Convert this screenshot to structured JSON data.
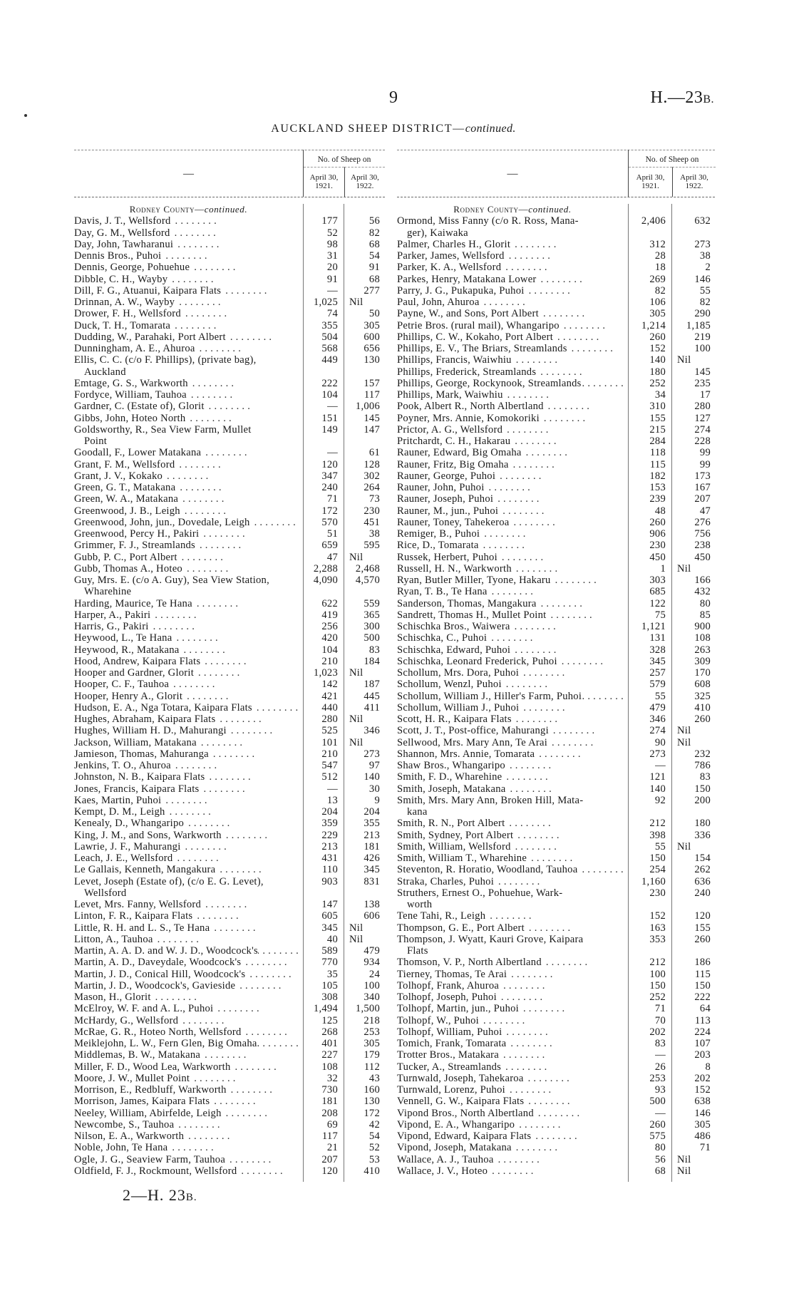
{
  "header": {
    "page_number": "9",
    "doc_ref_main": "H.—23",
    "doc_ref_suffix": "B."
  },
  "title": {
    "main": "AUCKLAND SHEEP DISTRICT—",
    "italic": "continued."
  },
  "table_header": {
    "name_col": "—",
    "group": "No. of Sheep on",
    "col1": "April 30, 1921.",
    "col2": "April 30, 1922."
  },
  "county": {
    "name": "Rodney County—",
    "suffix": "continued."
  },
  "left_rows": [
    {
      "name": "Davis, J. T., Wellsford",
      "a": "177",
      "b": "56"
    },
    {
      "name": "Day, G. M., Wellsford",
      "a": "52",
      "b": "82"
    },
    {
      "name": "Day, John, Tawharanui",
      "a": "98",
      "b": "68"
    },
    {
      "name": "Dennis Bros., Puhoi",
      "a": "31",
      "b": "54"
    },
    {
      "name": "Dennis, George, Pohuehue",
      "a": "20",
      "b": "91"
    },
    {
      "name": "Dibble, C. H., Wayby",
      "a": "91",
      "b": "68"
    },
    {
      "name": "Dill, F. G., Atuanui, Kaipara Flats",
      "a": "—",
      "b": "277"
    },
    {
      "name": "Drinnan, A. W., Wayby",
      "a": "1,025",
      "b": "Nil"
    },
    {
      "name": "Drower, F. H., Wellsford",
      "a": "74",
      "b": "50"
    },
    {
      "name": "Duck, T. H., Tomarata",
      "a": "355",
      "b": "305"
    },
    {
      "name": "Dudding, W., Parahaki, Port Albert",
      "a": "504",
      "b": "600"
    },
    {
      "name": "Dunningham, A. E., Ahuroa",
      "a": "568",
      "b": "656"
    },
    {
      "name": "Ellis, C. C. (c/o F. Phillips), (private bag),",
      "cont": "Auckland",
      "a": "449",
      "b": "130"
    },
    {
      "name": "Emtage, G. S., Warkworth",
      "a": "222",
      "b": "157"
    },
    {
      "name": "Fordyce, William, Tauhoa",
      "a": "104",
      "b": "117"
    },
    {
      "name": "Gardner, C. (Estate of), Glorit",
      "a": "—",
      "b": "1,006"
    },
    {
      "name": "Gibbs, John, Hoteo North",
      "a": "151",
      "b": "145"
    },
    {
      "name": "Goldsworthy, R., Sea View Farm, Mullet",
      "cont": "Point",
      "a": "149",
      "b": "147"
    },
    {
      "name": "Goodall, F., Lower Matakana",
      "a": "—",
      "b": "61"
    },
    {
      "name": "Grant, F. M., Wellsford",
      "a": "120",
      "b": "128"
    },
    {
      "name": "Grant, J. V., Kokako",
      "a": "347",
      "b": "302"
    },
    {
      "name": "Green, G. T., Matakana",
      "a": "240",
      "b": "264"
    },
    {
      "name": "Green, W. A., Matakana",
      "a": "71",
      "b": "73"
    },
    {
      "name": "Greenwood, J. B., Leigh",
      "a": "172",
      "b": "230"
    },
    {
      "name": "Greenwood, John, jun., Dovedale, Leigh",
      "a": "570",
      "b": "451"
    },
    {
      "name": "Greenwood, Percy H., Pakiri",
      "a": "51",
      "b": "38"
    },
    {
      "name": "Grimmer, F. J., Streamlands",
      "a": "659",
      "b": "595"
    },
    {
      "name": "Gubb, P. C., Port Albert",
      "a": "47",
      "b": "Nil"
    },
    {
      "name": "Gubb, Thomas A., Hoteo",
      "a": "2,288",
      "b": "2,468"
    },
    {
      "name": "Guy, Mrs. E. (c/o A. Guy), Sea View Station,",
      "cont": "Wharehine",
      "a": "4,090",
      "b": "4,570"
    },
    {
      "name": "Harding, Maurice, Te Hana",
      "a": "622",
      "b": "559"
    },
    {
      "name": "Harper, A., Pakiri",
      "a": "419",
      "b": "365"
    },
    {
      "name": "Harris, G., Pakiri",
      "a": "256",
      "b": "300"
    },
    {
      "name": "Heywood, L., Te Hana",
      "a": "420",
      "b": "500"
    },
    {
      "name": "Heywood, R., Matakana",
      "a": "104",
      "b": "83"
    },
    {
      "name": "Hood, Andrew, Kaipara Flats",
      "a": "210",
      "b": "184"
    },
    {
      "name": "Hooper and Gardner, Glorit",
      "a": "1,023",
      "b": "Nil"
    },
    {
      "name": "Hooper, C. F., Tauhoa",
      "a": "142",
      "b": "187"
    },
    {
      "name": "Hooper, Henry A., Glorit",
      "a": "421",
      "b": "445"
    },
    {
      "name": "Hudson, E. A., Nga Totara, Kaipara Flats",
      "a": "440",
      "b": "411"
    },
    {
      "name": "Hughes, Abraham, Kaipara Flats",
      "a": "280",
      "b": "Nil"
    },
    {
      "name": "Hughes, William H. D., Mahurangi",
      "a": "525",
      "b": "346"
    },
    {
      "name": "Jackson, William, Matakana",
      "a": "101",
      "b": "Nil"
    },
    {
      "name": "Jamieson, Thomas, Mahuranga",
      "a": "210",
      "b": "273"
    },
    {
      "name": "Jenkins, T. O., Ahuroa",
      "a": "547",
      "b": "97"
    },
    {
      "name": "Johnston, N. B., Kaipara Flats",
      "a": "512",
      "b": "140"
    },
    {
      "name": "Jones, Francis, Kaipara Flats",
      "a": "—",
      "b": "30"
    },
    {
      "name": "Kaes, Martin, Puhoi",
      "a": "13",
      "b": "9"
    },
    {
      "name": "Kempt, D. M., Leigh",
      "a": "204",
      "b": "204"
    },
    {
      "name": "Kenealy, D., Whangaripo",
      "a": "359",
      "b": "355"
    },
    {
      "name": "King, J. M., and Sons, Warkworth",
      "a": "229",
      "b": "213"
    },
    {
      "name": "Lawrie, J. F., Mahurangi",
      "a": "213",
      "b": "181"
    },
    {
      "name": "Leach, J. E., Wellsford",
      "a": "431",
      "b": "426"
    },
    {
      "name": "Le Gallais, Kenneth, Mangakura",
      "a": "110",
      "b": "345"
    },
    {
      "name": "Levet, Joseph (Estate of), (c/o E. G. Levet),",
      "cont": "Wellsford",
      "a": "903",
      "b": "831"
    },
    {
      "name": "Levet, Mrs. Fanny, Wellsford",
      "a": "147",
      "b": "138"
    },
    {
      "name": "Linton, F. R., Kaipara Flats",
      "a": "605",
      "b": "606"
    },
    {
      "name": "Little, R. H. and L. S., Te Hana",
      "a": "345",
      "b": "Nil"
    },
    {
      "name": "Litton, A., Tauhoa",
      "a": "40",
      "b": "Nil"
    },
    {
      "name": "Martin, A. A. D. and W. J. D., Woodcock's",
      "a": "589",
      "b": "479"
    },
    {
      "name": "Martin, A. D., Daveydale, Woodcock's",
      "a": "770",
      "b": "934"
    },
    {
      "name": "Martin, J. D., Conical Hill, Woodcock's",
      "a": "35",
      "b": "24"
    },
    {
      "name": "Martin, J. D., Woodcock's, Gavieside",
      "a": "105",
      "b": "100"
    },
    {
      "name": "Mason, H., Glorit",
      "a": "308",
      "b": "340"
    },
    {
      "name": "McElroy, W. F. and A. L., Puhoi",
      "a": "1,494",
      "b": "1,500"
    },
    {
      "name": "McHardy, G., Wellsford",
      "a": "125",
      "b": "218"
    },
    {
      "name": "McRae, G. R., Hoteo North, Wellsford",
      "a": "268",
      "b": "253"
    },
    {
      "name": "Meiklejohn, L. W., Fern Glen, Big Omaha",
      "a": "401",
      "b": "305"
    },
    {
      "name": "Middlemas, B. W., Matakana",
      "a": "227",
      "b": "179"
    },
    {
      "name": "Miller, F. D., Wood Lea, Warkworth",
      "a": "108",
      "b": "112"
    },
    {
      "name": "Moore, J. W., Mullet Point",
      "a": "32",
      "b": "43"
    },
    {
      "name": "Morrison, E., Redbluff, Warkworth",
      "a": "730",
      "b": "160"
    },
    {
      "name": "Morrison, James, Kaipara Flats",
      "a": "181",
      "b": "130"
    },
    {
      "name": "Neeley, William, Abirfelde, Leigh",
      "a": "208",
      "b": "172"
    },
    {
      "name": "Newcombe, S., Tauhoa",
      "a": "69",
      "b": "42"
    },
    {
      "name": "Nilson, E. A., Warkworth",
      "a": "117",
      "b": "54"
    },
    {
      "name": "Noble, John, Te Hana",
      "a": "21",
      "b": "52"
    },
    {
      "name": "Ogle, J. G., Seaview Farm, Tauhoa",
      "a": "207",
      "b": "53"
    },
    {
      "name": "Oldfield, F. J., Rockmount, Wellsford",
      "a": "120",
      "b": "410"
    }
  ],
  "right_rows": [
    {
      "name": "Ormond, Miss Fanny (c/o R. Ross, Mana-",
      "cont": "ger), Kaiwaka",
      "a": "2,406",
      "b": "632"
    },
    {
      "name": "Palmer, Charles H., Glorit",
      "a": "312",
      "b": "273"
    },
    {
      "name": "Parker, James, Wellsford",
      "a": "28",
      "b": "38"
    },
    {
      "name": "Parker, K. A., Wellsford",
      "a": "18",
      "b": "2"
    },
    {
      "name": "Parkes, Henry, Matakana Lower",
      "a": "269",
      "b": "146"
    },
    {
      "name": "Parry, J. G., Pukapuka, Puhoi",
      "a": "82",
      "b": "55"
    },
    {
      "name": "Paul, John, Ahuroa",
      "a": "106",
      "b": "82"
    },
    {
      "name": "Payne, W., and Sons, Port Albert",
      "a": "305",
      "b": "290"
    },
    {
      "name": "Petrie Bros. (rural mail), Whangaripo",
      "a": "1,214",
      "b": "1,185"
    },
    {
      "name": "Phillips, C. W., Kokaho, Port Albert",
      "a": "260",
      "b": "219"
    },
    {
      "name": "Phillips, E. V., The Briars, Streamlands",
      "a": "152",
      "b": "100"
    },
    {
      "name": "Phillips, Francis, Waiwhiu",
      "a": "140",
      "b": "Nil"
    },
    {
      "name": "Phillips, Frederick, Streamlands",
      "a": "180",
      "b": "145"
    },
    {
      "name": "Phillips, George, Rockynook, Streamlands",
      "a": "252",
      "b": "235"
    },
    {
      "name": "Phillips, Mark, Waiwhiu",
      "a": "34",
      "b": "17"
    },
    {
      "name": "Pook, Albert R., North Albertland",
      "a": "310",
      "b": "280"
    },
    {
      "name": "Poyner, Mrs. Annie, Komokoriki",
      "a": "155",
      "b": "127"
    },
    {
      "name": "Prictor, A. G., Wellsford",
      "a": "215",
      "b": "274"
    },
    {
      "name": "Pritchardt, C. H., Hakarau",
      "a": "284",
      "b": "228"
    },
    {
      "name": "Rauner, Edward, Big Omaha",
      "a": "118",
      "b": "99"
    },
    {
      "name": "Rauner, Fritz, Big Omaha",
      "a": "115",
      "b": "99"
    },
    {
      "name": "Rauner, George, Puhoi",
      "a": "182",
      "b": "173"
    },
    {
      "name": "Rauner, John, Puhoi",
      "a": "153",
      "b": "167"
    },
    {
      "name": "Rauner, Joseph, Puhoi",
      "a": "239",
      "b": "207"
    },
    {
      "name": "Rauner, M., jun., Puhoi",
      "a": "48",
      "b": "47"
    },
    {
      "name": "Rauner, Toney, Tahekeroa",
      "a": "260",
      "b": "276"
    },
    {
      "name": "Remiger, B., Puhoi",
      "a": "906",
      "b": "756"
    },
    {
      "name": "Rice, D., Tomarata",
      "a": "230",
      "b": "238"
    },
    {
      "name": "Russek, Herbert, Puhoi",
      "a": "450",
      "b": "450"
    },
    {
      "name": "Russell, H. N., Warkworth",
      "a": "1",
      "b": "Nil"
    },
    {
      "name": "Ryan, Butler Miller, Tyone, Hakaru",
      "a": "303",
      "b": "166"
    },
    {
      "name": "Ryan, T. B., Te Hana",
      "a": "685",
      "b": "432"
    },
    {
      "name": "Sanderson, Thomas, Mangakura",
      "a": "122",
      "b": "80"
    },
    {
      "name": "Sandrett, Thomas H., Mullet Point",
      "a": "75",
      "b": "85"
    },
    {
      "name": "Schischka Bros., Waiwera",
      "a": "1,121",
      "b": "900"
    },
    {
      "name": "Schischka, C., Puhoi",
      "a": "131",
      "b": "108"
    },
    {
      "name": "Schischka, Edward, Puhoi",
      "a": "328",
      "b": "263"
    },
    {
      "name": "Schischka, Leonard Frederick, Puhoi",
      "a": "345",
      "b": "309"
    },
    {
      "name": "Schollum, Mrs. Dora, Puhoi",
      "a": "257",
      "b": "170"
    },
    {
      "name": "Schollum, Wenzl, Puhoi",
      "a": "579",
      "b": "608"
    },
    {
      "name": "Schollum, William J., Hiller's Farm, Puhoi",
      "a": "55",
      "b": "325"
    },
    {
      "name": "Schollum, William J., Puhoi",
      "a": "479",
      "b": "410"
    },
    {
      "name": "Scott, H. R., Kaipara Flats",
      "a": "346",
      "b": "260"
    },
    {
      "name": "Scott, J. T., Post-office, Mahurangi",
      "a": "274",
      "b": "Nil"
    },
    {
      "name": "Sellwood, Mrs. Mary Ann, Te Arai",
      "a": "90",
      "b": "Nil"
    },
    {
      "name": "Shannon, Mrs. Annie, Tomarata",
      "a": "273",
      "b": "232"
    },
    {
      "name": "Shaw Bros., Whangaripo",
      "a": "—",
      "b": "786"
    },
    {
      "name": "Smith, F. D., Wharehine",
      "a": "121",
      "b": "83"
    },
    {
      "name": "Smith, Joseph, Matakana",
      "a": "140",
      "b": "150"
    },
    {
      "name": "Smith, Mrs. Mary Ann, Broken Hill, Mata-",
      "cont": "kana",
      "a": "92",
      "b": "200"
    },
    {
      "name": "Smith, R. N., Port Albert",
      "a": "212",
      "b": "180"
    },
    {
      "name": "Smith, Sydney, Port Albert",
      "a": "398",
      "b": "336"
    },
    {
      "name": "Smith, William, Wellsford",
      "a": "55",
      "b": "Nil"
    },
    {
      "name": "Smith, William T., Wharehine",
      "a": "150",
      "b": "154"
    },
    {
      "name": "Steventon, R. Horatio, Woodland, Tauhoa",
      "a": "254",
      "b": "262"
    },
    {
      "name": "Straka, Charles, Puhoi",
      "a": "1,160",
      "b": "636"
    },
    {
      "name": "Struthers, Ernest O., Pohuehue, Wark-",
      "cont": "worth",
      "a": "230",
      "b": "240"
    },
    {
      "name": "Tene Tahi, R., Leigh",
      "a": "152",
      "b": "120"
    },
    {
      "name": "Thompson, G. E., Port Albert",
      "a": "163",
      "b": "155"
    },
    {
      "name": "Thompson, J. Wyatt, Kauri Grove, Kaipara",
      "cont": "Flats",
      "a": "353",
      "b": "260"
    },
    {
      "name": "Thomson, V. P., North Albertland",
      "a": "212",
      "b": "186"
    },
    {
      "name": "Tierney, Thomas, Te Arai",
      "a": "100",
      "b": "115"
    },
    {
      "name": "Tolhopf, Frank, Ahuroa",
      "a": "150",
      "b": "150"
    },
    {
      "name": "Tolhopf, Joseph, Puhoi",
      "a": "252",
      "b": "222"
    },
    {
      "name": "Tolhopf, Martin, jun., Puhoi",
      "a": "71",
      "b": "64"
    },
    {
      "name": "Tolhopf, W., Puhoi",
      "a": "70",
      "b": "113"
    },
    {
      "name": "Tolhopf, William, Puhoi",
      "a": "202",
      "b": "224"
    },
    {
      "name": "Tomich, Frank, Tomarata",
      "a": "83",
      "b": "107"
    },
    {
      "name": "Trotter Bros., Matakara",
      "a": "—",
      "b": "203"
    },
    {
      "name": "Tucker, A., Streamlands",
      "a": "26",
      "b": "8"
    },
    {
      "name": "Turnwald, Joseph, Tahekaroa",
      "a": "253",
      "b": "202"
    },
    {
      "name": "Turnwald, Lorenz, Puhoi",
      "a": "93",
      "b": "152"
    },
    {
      "name": "Vennell, G. W., Kaipara Flats",
      "a": "500",
      "b": "638"
    },
    {
      "name": "Vipond Bros., North Albertland",
      "a": "—",
      "b": "146"
    },
    {
      "name": "Vipond, E. A., Whangaripo",
      "a": "260",
      "b": "305"
    },
    {
      "name": "Vipond, Edward, Kaipara Flats",
      "a": "575",
      "b": "486"
    },
    {
      "name": "Vipond, Joseph, Matakana",
      "a": "80",
      "b": "71"
    },
    {
      "name": "Wallace, A. J., Tauhoa",
      "a": "56",
      "b": "Nil"
    },
    {
      "name": "Wallace, J. V., Hoteo",
      "a": "68",
      "b": "Nil"
    }
  ],
  "footer": {
    "signature_main": "2—H. 23",
    "signature_suffix": "B."
  }
}
